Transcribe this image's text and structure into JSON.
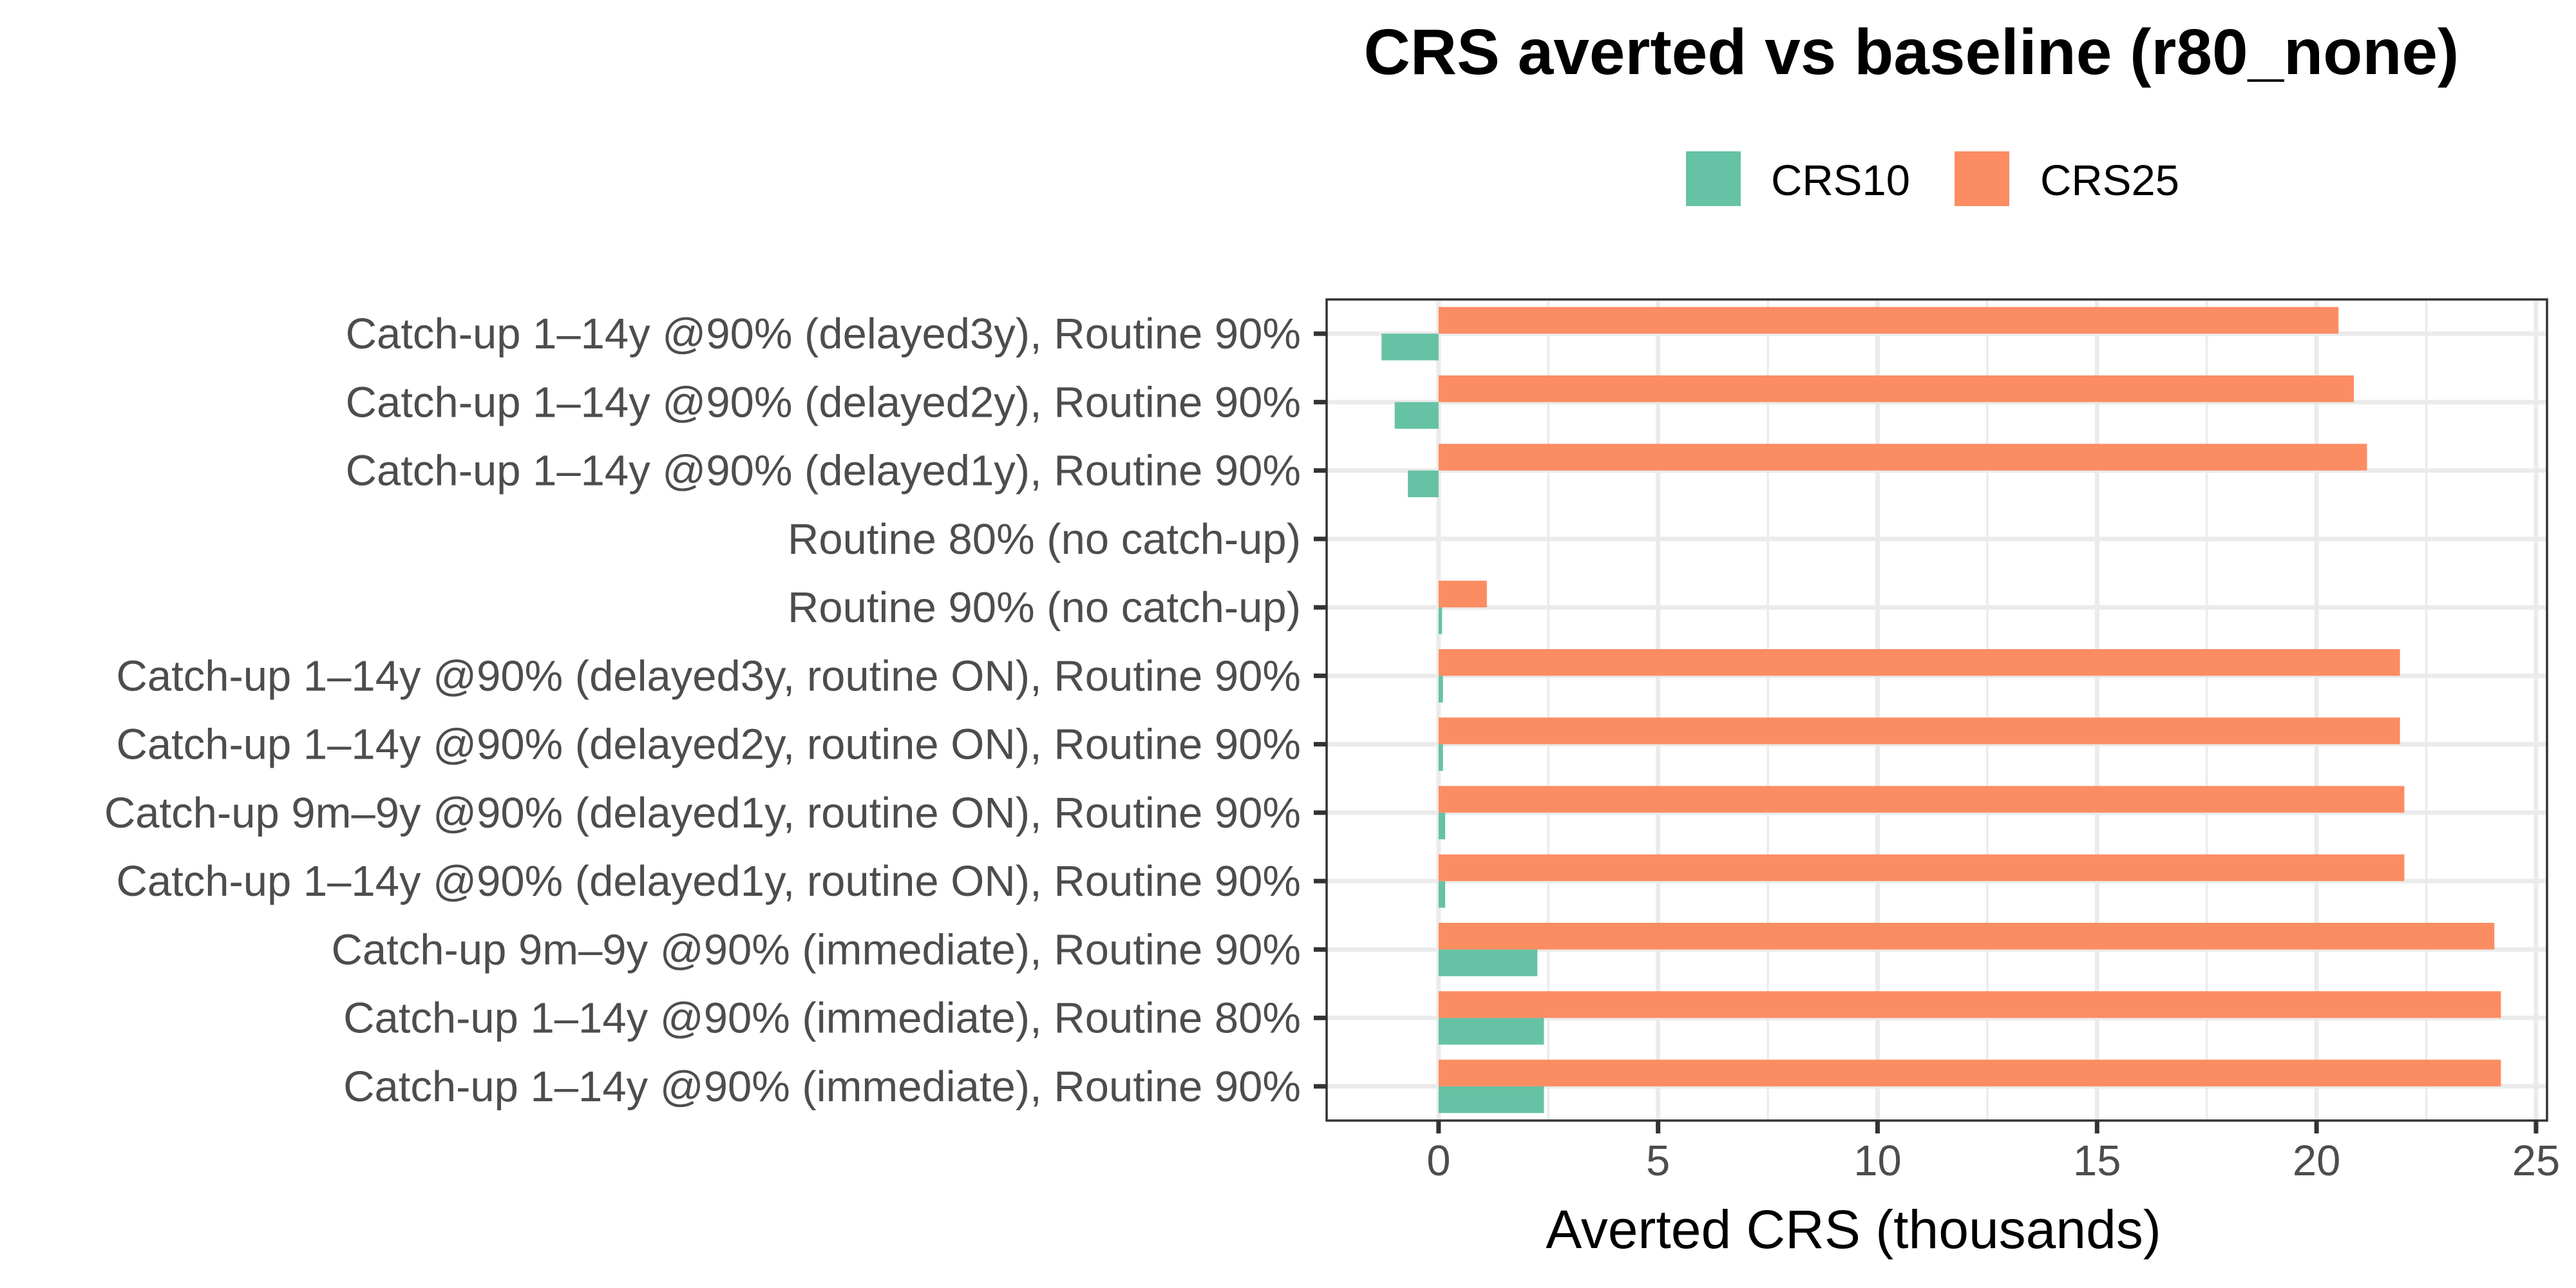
{
  "chart_data": {
    "type": "bar",
    "orientation": "horizontal",
    "title": "CRS averted vs baseline (r80_none)",
    "xlabel": "Averted CRS (thousands)",
    "ylabel": "",
    "xlim": [
      -2.55,
      25.25
    ],
    "xticks": [
      0,
      5,
      10,
      15,
      20,
      25
    ],
    "grid": true,
    "legend_position": "top",
    "categories": [
      "Catch-up 1–14y @90% (delayed3y), Routine 90%",
      "Catch-up 1–14y @90% (delayed2y), Routine 90%",
      "Catch-up 1–14y @90% (delayed1y), Routine 90%",
      "Routine 80% (no catch-up)",
      "Routine 90% (no catch-up)",
      "Catch-up 1–14y @90% (delayed3y, routine ON), Routine 90%",
      "Catch-up 1–14y @90% (delayed2y, routine ON), Routine 90%",
      "Catch-up 9m–9y @90% (delayed1y, routine ON), Routine 90%",
      "Catch-up 1–14y @90% (delayed1y, routine ON), Routine 90%",
      "Catch-up 9m–9y @90% (immediate), Routine 90%",
      "Catch-up 1–14y @90% (immediate), Routine 80%",
      "Catch-up 1–14y @90% (immediate), Routine 90%"
    ],
    "series": [
      {
        "name": "CRS10",
        "color": "#66c2a5",
        "values": [
          -1.3,
          -1.0,
          -0.7,
          0,
          0.08,
          0.1,
          0.1,
          0.15,
          0.15,
          2.25,
          2.4,
          2.4
        ]
      },
      {
        "name": "CRS25",
        "color": "#fc8d62",
        "values": [
          20.5,
          20.85,
          21.15,
          0,
          1.1,
          21.9,
          21.9,
          22.0,
          22.0,
          24.05,
          24.2,
          24.2
        ]
      }
    ]
  }
}
